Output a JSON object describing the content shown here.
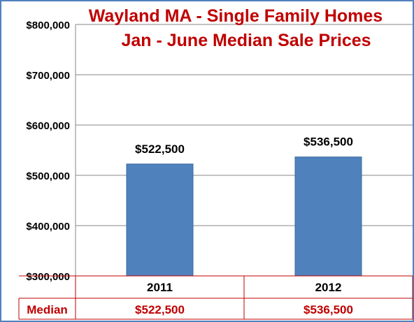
{
  "chart_data": {
    "type": "bar",
    "title_lines": [
      "Wayland MA - Single Family Homes",
      "Jan - June Median Sale Prices"
    ],
    "categories": [
      "2011",
      "2012"
    ],
    "values": [
      522500,
      536500
    ],
    "value_labels": [
      "$522,500",
      "$536,500"
    ],
    "ylim": [
      300000,
      800000
    ],
    "y_ticks": [
      300000,
      400000,
      500000,
      600000,
      700000,
      800000
    ],
    "y_tick_labels": [
      "$300,000",
      "$400,000",
      "$500,000",
      "$600,000",
      "$700,000",
      "$800,000"
    ],
    "grid": true,
    "legend": "none",
    "table": {
      "row_label": "Median",
      "values": [
        "$522,500",
        "$536,500"
      ]
    },
    "colors": {
      "bar": "#4f81bd",
      "bar_edge": "#3a6aa0",
      "title": "#c00000",
      "grid": "#878787",
      "table_border": "#c00000",
      "frame": "#4f81bd"
    }
  }
}
